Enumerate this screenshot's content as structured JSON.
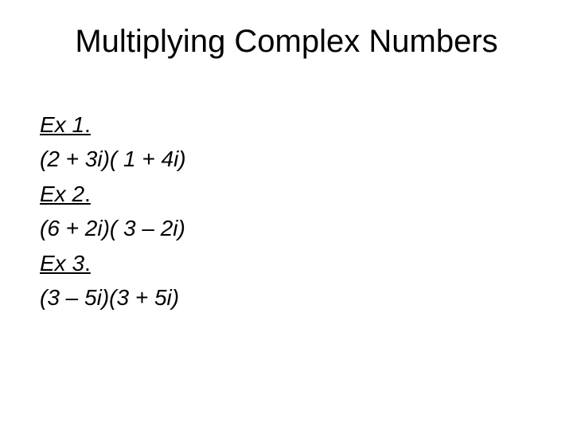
{
  "slide": {
    "title": "Multiplying Complex Numbers",
    "background_color": "#ffffff",
    "text_color": "#000000",
    "title_fontsize": 40,
    "body_fontsize": 28,
    "font_family": "Arial",
    "examples": [
      {
        "label": "Ex 1",
        "label_period": ".",
        "expression": "(2 + 3i)( 1 + 4i)"
      },
      {
        "label": "Ex 2",
        "label_period": ".",
        "expression": "(6 + 2i)( 3 – 2i)"
      },
      {
        "label": "Ex 3",
        "label_period": ".",
        "expression": "(3 – 5i)(3 + 5i)"
      }
    ]
  }
}
